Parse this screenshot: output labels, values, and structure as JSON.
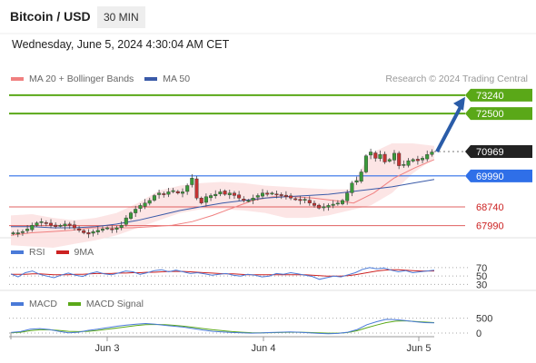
{
  "header": {
    "title": "Bitcoin / USD",
    "timeframe": "30 MIN",
    "datetime": "Wednesday, June 5, 2024 4:30:04 AM CET"
  },
  "legend": {
    "ma20": "MA 20 + Bollinger Bands",
    "ma50": "MA 50",
    "credit": "Research © 2024 Trading Central"
  },
  "rsi_legend": {
    "rsi": "RSI",
    "ma": "9MA"
  },
  "macd_legend": {
    "macd": "MACD",
    "signal": "MACD Signal"
  },
  "colors": {
    "resistance": "#5aa818",
    "current": "#222222",
    "pivot": "#2f6fe8",
    "support": "#e06060",
    "ma20": "#f08080",
    "ma50": "#3a5aa8",
    "band": "#fbdcdc",
    "arrow": "#2a5ca8",
    "up": "#3a9a3a",
    "down": "#c33333"
  },
  "chart_data": [
    {
      "type": "candlestick",
      "x_labels": [
        "Jun 3",
        "Jun 4",
        "Jun 5"
      ],
      "ylim": [
        67500,
        73600
      ],
      "levels": [
        {
          "value": 73240,
          "label": "73240",
          "kind": "resistance"
        },
        {
          "value": 72500,
          "label": "72500",
          "kind": "resistance"
        },
        {
          "value": 70969,
          "label": "70969",
          "kind": "current"
        },
        {
          "value": 69990,
          "label": "69990",
          "kind": "pivot"
        },
        {
          "value": 68740,
          "label": "68740",
          "kind": "support"
        },
        {
          "value": 67990,
          "label": "67990",
          "kind": "support"
        }
      ],
      "close_path": [
        67700,
        67700,
        67750,
        67850,
        68000,
        68100,
        68150,
        68100,
        68000,
        67950,
        68000,
        68050,
        68000,
        67900,
        67800,
        67700,
        67650,
        67750,
        67800,
        67850,
        67900,
        67850,
        67900,
        68000,
        68300,
        68500,
        68650,
        68800,
        68900,
        69000,
        69200,
        69300,
        69250,
        69350,
        69400,
        69300,
        69350,
        69600,
        69900,
        69100,
        68900,
        69150,
        69200,
        69250,
        69350,
        69250,
        69300,
        69200,
        69100,
        69000,
        69000,
        69100,
        69200,
        69300,
        69250,
        69300,
        69250,
        69200,
        69150,
        69100,
        69050,
        69000,
        69050,
        68900,
        68800,
        68700,
        68750,
        68800,
        68850,
        68900,
        69000,
        69300,
        69700,
        69800,
        70150,
        70800,
        70950,
        70700,
        70850,
        70550,
        70650,
        70900,
        70400,
        70450,
        70600,
        70650,
        70600,
        70700,
        70850,
        70950
      ],
      "ma20": [
        67600,
        67700,
        67750,
        67800,
        67900,
        67900,
        67900,
        67950,
        68000,
        68150,
        68400,
        68700,
        69000,
        69150,
        69150,
        69100,
        69000,
        68900,
        69300,
        69900,
        70300,
        70650
      ],
      "ma50": [
        67950,
        67950,
        67900,
        67900,
        67950,
        68050,
        68200,
        68400,
        68600,
        68750,
        68900,
        69000,
        69100,
        69150,
        69200,
        69250,
        69350,
        69450,
        69550,
        69700,
        69850
      ],
      "band_upper": [
        68400,
        68450,
        68300,
        68200,
        68300,
        68500,
        68900,
        69400,
        69600,
        69700,
        69750,
        69700,
        69600,
        69550,
        69500,
        69450,
        69450,
        70900,
        71300,
        71300,
        71200
      ],
      "band_lower": [
        67200,
        67150,
        67100,
        67250,
        67400,
        67600,
        67900,
        68200,
        68500,
        68650,
        68650,
        68600,
        68500,
        68300,
        68300,
        68400,
        68600,
        68800,
        69300,
        70100,
        70700
      ],
      "projection": [
        {
          "from": 70969,
          "to": 73240
        }
      ]
    },
    {
      "type": "line",
      "name": "RSI",
      "levels": [
        {
          "value": 70,
          "label": "70"
        },
        {
          "value": 50,
          "label": "50"
        },
        {
          "value": 30,
          "label": "30"
        }
      ],
      "ylim": [
        20,
        85
      ],
      "series": [
        {
          "name": "RSI",
          "values": [
            55,
            48,
            58,
            62,
            54,
            50,
            46,
            52,
            57,
            52,
            49,
            56,
            60,
            55,
            53,
            57,
            62,
            60,
            54,
            58,
            63,
            65,
            60,
            64,
            60,
            56,
            58,
            55,
            52,
            54,
            56,
            52,
            50,
            54,
            52,
            48,
            50,
            56,
            54,
            58,
            55,
            52,
            49,
            42,
            46,
            50,
            48,
            53,
            58,
            66,
            70,
            67,
            69,
            64,
            60,
            63,
            58,
            60,
            62,
            64
          ]
        },
        {
          "name": "9MA",
          "values": [
            54,
            54,
            54,
            55,
            55,
            54,
            53,
            53,
            53,
            54,
            54,
            55,
            56,
            56,
            56,
            57,
            57,
            58,
            58,
            59,
            59,
            60,
            61,
            61,
            61,
            60,
            59,
            58,
            57,
            56,
            55,
            55,
            54,
            53,
            53,
            53,
            53,
            53,
            53,
            53,
            53,
            53,
            52,
            51,
            50,
            50,
            50,
            51,
            53,
            56,
            59,
            62,
            64,
            65,
            65,
            64,
            63,
            62,
            62,
            62
          ]
        }
      ]
    },
    {
      "type": "line",
      "name": "MACD",
      "levels": [
        {
          "value": 500,
          "label": "500"
        },
        {
          "value": 0,
          "label": "0"
        }
      ],
      "ylim": [
        -150,
        760
      ],
      "series": [
        {
          "name": "MACD",
          "values": [
            20,
            50,
            130,
            150,
            120,
            60,
            10,
            30,
            90,
            130,
            180,
            230,
            270,
            300,
            320,
            300,
            260,
            230,
            200,
            150,
            100,
            60,
            40,
            20,
            10,
            0,
            5,
            20,
            30,
            40,
            30,
            10,
            -10,
            -20,
            -10,
            30,
            120,
            280,
            380,
            460,
            450,
            420,
            380,
            350,
            340
          ]
        },
        {
          "name": "MACD Signal",
          "values": [
            10,
            30,
            80,
            110,
            110,
            90,
            60,
            50,
            60,
            90,
            130,
            170,
            210,
            250,
            280,
            290,
            280,
            260,
            230,
            190,
            150,
            110,
            80,
            50,
            30,
            15,
            10,
            15,
            20,
            30,
            30,
            20,
            10,
            0,
            0,
            20,
            80,
            180,
            270,
            350,
            400,
            410,
            390,
            370,
            350
          ]
        }
      ]
    }
  ]
}
